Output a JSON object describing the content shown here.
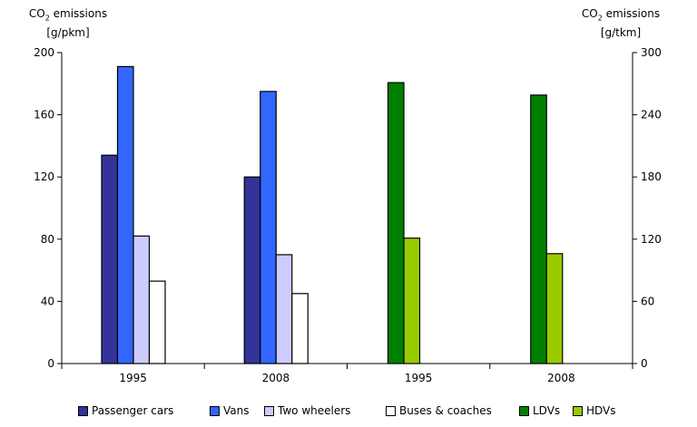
{
  "chart_data": {
    "type": "bar",
    "y_left": {
      "title_line1": "CO",
      "title_sub": "2",
      "title_rest": " emissions",
      "title_line2": "[g/pkm]",
      "range": [
        0,
        200
      ],
      "ticks": [
        "0",
        "40",
        "80",
        "120",
        "160",
        "200"
      ]
    },
    "y_right": {
      "title_line1": "CO",
      "title_sub": "2",
      "title_rest": " emissions",
      "title_line2": "[g/tkm]",
      "range": [
        0,
        300
      ],
      "ticks": [
        "0",
        "60",
        "120",
        "180",
        "240",
        "300"
      ]
    },
    "groups": [
      {
        "label": "1995",
        "axis": "left",
        "bars": [
          {
            "series": "Passenger cars",
            "value": 134
          },
          {
            "series": "Vans",
            "value": 191
          },
          {
            "series": "Two wheelers",
            "value": 82
          },
          {
            "series": "Buses & coaches",
            "value": 53
          }
        ]
      },
      {
        "label": "2008",
        "axis": "left",
        "bars": [
          {
            "series": "Passenger cars",
            "value": 120
          },
          {
            "series": "Vans",
            "value": 175
          },
          {
            "series": "Two wheelers",
            "value": 70
          },
          {
            "series": "Buses & coaches",
            "value": 45
          }
        ]
      },
      {
        "label": "1995",
        "axis": "right",
        "bars": [
          {
            "series": "LDVs",
            "value": 271
          },
          {
            "series": "HDVs",
            "value": 121
          }
        ]
      },
      {
        "label": "2008",
        "axis": "right",
        "bars": [
          {
            "series": "LDVs",
            "value": 259
          },
          {
            "series": "HDVs",
            "value": 106
          }
        ]
      }
    ],
    "legend": [
      {
        "name": "Passenger cars",
        "color": "#333399"
      },
      {
        "name": "Vans",
        "color": "#3366ff"
      },
      {
        "name": "Two wheelers",
        "color": "#ccccff"
      },
      {
        "name": "Buses & coaches",
        "color": "#ffffff"
      },
      {
        "name": "LDVs",
        "color": "#008000"
      },
      {
        "name": "HDVs",
        "color": "#99cc00"
      }
    ]
  }
}
